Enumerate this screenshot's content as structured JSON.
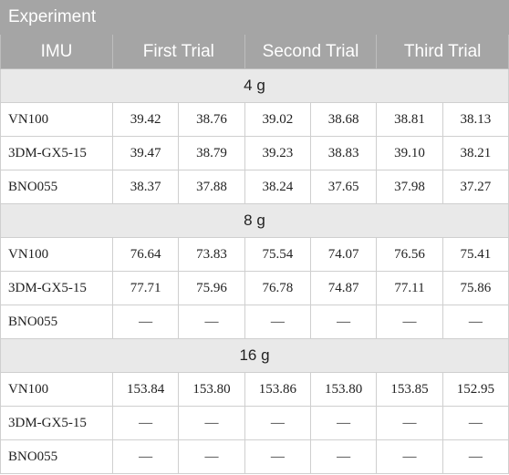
{
  "header": {
    "title": "Experiment"
  },
  "table": {
    "columns": [
      "IMU",
      "First Trial",
      "Second Trial",
      "Third Trial"
    ],
    "sections": [
      {
        "label": "4 g",
        "rows": [
          [
            "VN100",
            "39.42",
            "38.76",
            "39.02",
            "38.68",
            "38.81",
            "38.13"
          ],
          [
            "3DM-GX5-15",
            "39.47",
            "38.79",
            "39.23",
            "38.83",
            "39.10",
            "38.21"
          ],
          [
            "BNO055",
            "38.37",
            "37.88",
            "38.24",
            "37.65",
            "37.98",
            "37.27"
          ]
        ]
      },
      {
        "label": "8 g",
        "rows": [
          [
            "VN100",
            "76.64",
            "73.83",
            "75.54",
            "74.07",
            "76.56",
            "75.41"
          ],
          [
            "3DM-GX5-15",
            "77.71",
            "75.96",
            "76.78",
            "74.87",
            "77.11",
            "75.86"
          ],
          [
            "BNO055",
            "—",
            "—",
            "—",
            "—",
            "—",
            "—"
          ]
        ]
      },
      {
        "label": "16 g",
        "rows": [
          [
            "VN100",
            "153.84",
            "153.80",
            "153.86",
            "153.80",
            "153.85",
            "152.95"
          ],
          [
            "3DM-GX5-15",
            "—",
            "—",
            "—",
            "—",
            "—",
            "—"
          ],
          [
            "BNO055",
            "—",
            "—",
            "—",
            "—",
            "—",
            "—"
          ]
        ]
      }
    ]
  }
}
